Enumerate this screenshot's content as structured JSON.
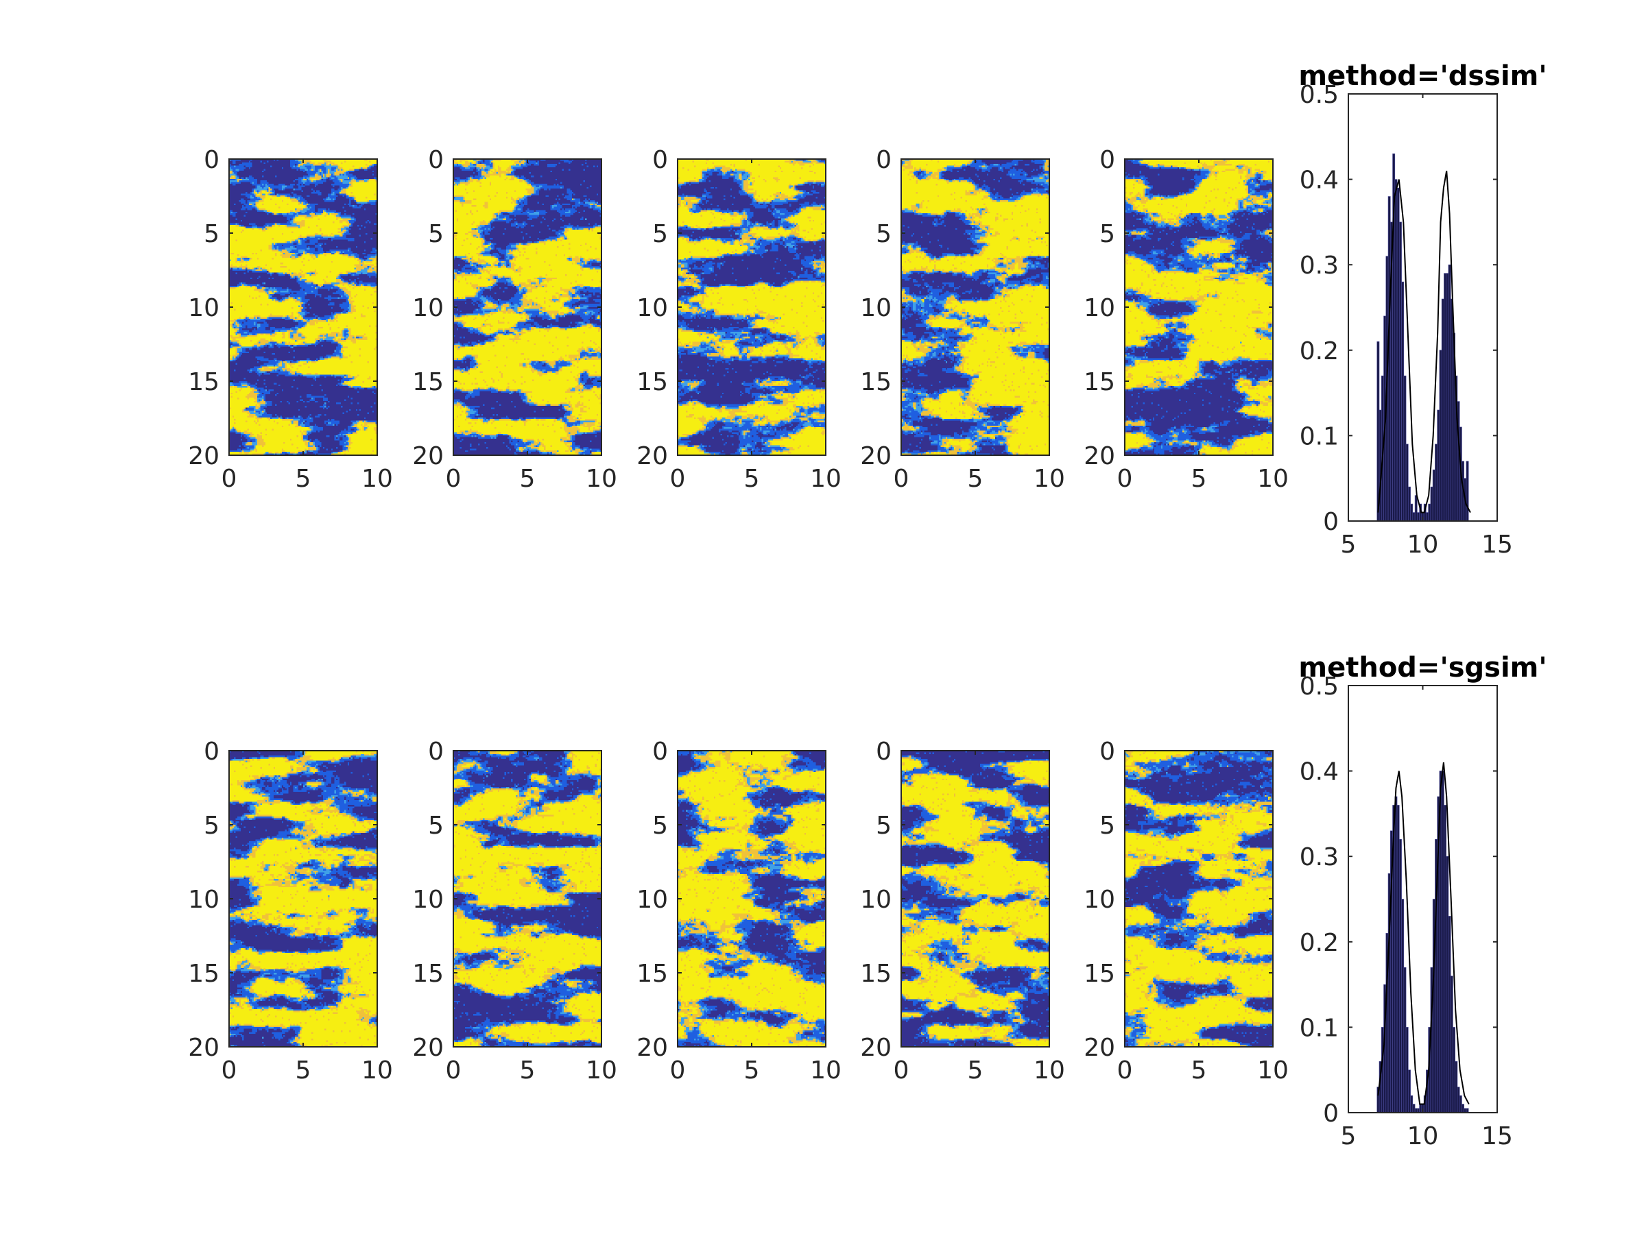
{
  "figure": {
    "background": "#ffffff"
  },
  "colormap": [
    "#35318f",
    "#1f5fe0",
    "#3fa0e8",
    "#f0c23a",
    "#f6ee12"
  ],
  "chart_data": [
    {
      "type": "heatmap",
      "row": 0,
      "col": 0,
      "xlim": [
        0,
        10
      ],
      "ylim": [
        0,
        20
      ],
      "xticks": [
        "0",
        "5",
        "10"
      ],
      "yticks": [
        "0",
        "5",
        "10",
        "15",
        "20"
      ]
    },
    {
      "type": "heatmap",
      "row": 0,
      "col": 1,
      "xlim": [
        0,
        10
      ],
      "ylim": [
        0,
        20
      ],
      "xticks": [
        "0",
        "5",
        "10"
      ],
      "yticks": [
        "0",
        "5",
        "10",
        "15",
        "20"
      ]
    },
    {
      "type": "heatmap",
      "row": 0,
      "col": 2,
      "xlim": [
        0,
        10
      ],
      "ylim": [
        0,
        20
      ],
      "xticks": [
        "0",
        "5",
        "10"
      ],
      "yticks": [
        "0",
        "5",
        "10",
        "15",
        "20"
      ]
    },
    {
      "type": "heatmap",
      "row": 0,
      "col": 3,
      "xlim": [
        0,
        10
      ],
      "ylim": [
        0,
        20
      ],
      "xticks": [
        "0",
        "5",
        "10"
      ],
      "yticks": [
        "0",
        "5",
        "10",
        "15",
        "20"
      ]
    },
    {
      "type": "heatmap",
      "row": 0,
      "col": 4,
      "xlim": [
        0,
        10
      ],
      "ylim": [
        0,
        20
      ],
      "xticks": [
        "0",
        "5",
        "10"
      ],
      "yticks": [
        "0",
        "5",
        "10",
        "15",
        "20"
      ]
    },
    {
      "type": "bar",
      "row": 0,
      "title": "method='dssim'",
      "xlim": [
        5,
        15
      ],
      "ylim": [
        0,
        0.5
      ],
      "xticks": [
        "5",
        "10",
        "15"
      ],
      "yticks": [
        "0",
        "0.1",
        "0.2",
        "0.3",
        "0.4",
        "0.5"
      ],
      "bar_color": "#1a1a4a",
      "bins": [
        7.0,
        7.15,
        7.3,
        7.45,
        7.6,
        7.75,
        7.9,
        8.05,
        8.2,
        8.35,
        8.5,
        8.65,
        8.8,
        8.95,
        9.1,
        9.25,
        9.4,
        9.55,
        9.7,
        9.85,
        10.0,
        10.15,
        10.3,
        10.45,
        10.6,
        10.75,
        10.9,
        11.05,
        11.2,
        11.35,
        11.5,
        11.65,
        11.8,
        11.95,
        12.1,
        12.25,
        12.4,
        12.55,
        12.7,
        12.85,
        13.0
      ],
      "values": [
        0.21,
        0.13,
        0.17,
        0.24,
        0.31,
        0.38,
        0.35,
        0.43,
        0.4,
        0.39,
        0.35,
        0.28,
        0.17,
        0.09,
        0.04,
        0.02,
        0.01,
        0.03,
        0.01,
        0.02,
        0.01,
        0.02,
        0.01,
        0.02,
        0.04,
        0.06,
        0.09,
        0.13,
        0.2,
        0.26,
        0.29,
        0.29,
        0.3,
        0.26,
        0.22,
        0.17,
        0.14,
        0.11,
        0.07,
        0.05,
        0.07
      ],
      "reference_curve": {
        "x": [
          7.0,
          7.5,
          7.8,
          8.1,
          8.4,
          8.7,
          9.0,
          9.3,
          9.6,
          9.9,
          10.1,
          10.4,
          10.7,
          11.0,
          11.2,
          11.4,
          11.6,
          11.8,
          12.0,
          12.3,
          12.6,
          12.9,
          13.2
        ],
        "y": [
          0.01,
          0.12,
          0.26,
          0.38,
          0.4,
          0.35,
          0.22,
          0.09,
          0.03,
          0.01,
          0.01,
          0.03,
          0.1,
          0.22,
          0.35,
          0.39,
          0.41,
          0.36,
          0.26,
          0.12,
          0.05,
          0.02,
          0.01
        ]
      }
    },
    {
      "type": "heatmap",
      "row": 1,
      "col": 0,
      "xlim": [
        0,
        10
      ],
      "ylim": [
        0,
        20
      ],
      "xticks": [
        "0",
        "5",
        "10"
      ],
      "yticks": [
        "0",
        "5",
        "10",
        "15",
        "20"
      ]
    },
    {
      "type": "heatmap",
      "row": 1,
      "col": 1,
      "xlim": [
        0,
        10
      ],
      "ylim": [
        0,
        20
      ],
      "xticks": [
        "0",
        "5",
        "10"
      ],
      "yticks": [
        "0",
        "5",
        "10",
        "15",
        "20"
      ]
    },
    {
      "type": "heatmap",
      "row": 1,
      "col": 2,
      "xlim": [
        0,
        10
      ],
      "ylim": [
        0,
        20
      ],
      "xticks": [
        "0",
        "5",
        "10"
      ],
      "yticks": [
        "0",
        "5",
        "10",
        "15",
        "20"
      ]
    },
    {
      "type": "heatmap",
      "row": 1,
      "col": 3,
      "xlim": [
        0,
        10
      ],
      "ylim": [
        0,
        20
      ],
      "xticks": [
        "0",
        "5",
        "10"
      ],
      "yticks": [
        "0",
        "5",
        "10",
        "15",
        "20"
      ]
    },
    {
      "type": "heatmap",
      "row": 1,
      "col": 4,
      "xlim": [
        0,
        10
      ],
      "ylim": [
        0,
        20
      ],
      "xticks": [
        "0",
        "5",
        "10"
      ],
      "yticks": [
        "0",
        "5",
        "10",
        "15",
        "20"
      ]
    },
    {
      "type": "bar",
      "row": 1,
      "title": "method='sgsim'",
      "xlim": [
        5,
        15
      ],
      "ylim": [
        0,
        0.5
      ],
      "xticks": [
        "5",
        "10",
        "15"
      ],
      "yticks": [
        "0",
        "0.1",
        "0.2",
        "0.3",
        "0.4",
        "0.5"
      ],
      "bar_color": "#1a1a4a",
      "bins": [
        7.0,
        7.15,
        7.3,
        7.45,
        7.6,
        7.75,
        7.9,
        8.05,
        8.2,
        8.35,
        8.5,
        8.65,
        8.8,
        8.95,
        9.1,
        9.25,
        9.4,
        9.55,
        9.7,
        9.85,
        10.0,
        10.15,
        10.3,
        10.45,
        10.6,
        10.75,
        10.9,
        11.05,
        11.2,
        11.35,
        11.5,
        11.65,
        11.8,
        11.95,
        12.1,
        12.25,
        12.4,
        12.55,
        12.7,
        12.85,
        13.0
      ],
      "values": [
        0.03,
        0.06,
        0.1,
        0.15,
        0.21,
        0.28,
        0.33,
        0.36,
        0.37,
        0.36,
        0.32,
        0.25,
        0.17,
        0.1,
        0.05,
        0.02,
        0.01,
        0.005,
        0.005,
        0.01,
        0.01,
        0.02,
        0.05,
        0.1,
        0.17,
        0.25,
        0.32,
        0.37,
        0.4,
        0.4,
        0.36,
        0.3,
        0.23,
        0.16,
        0.1,
        0.06,
        0.03,
        0.02,
        0.01,
        0.005,
        0.005
      ],
      "reference_curve": {
        "x": [
          7.0,
          7.4,
          7.7,
          8.0,
          8.2,
          8.4,
          8.6,
          8.9,
          9.2,
          9.5,
          9.8,
          10.1,
          10.4,
          10.7,
          11.0,
          11.2,
          11.4,
          11.6,
          11.9,
          12.2,
          12.5,
          12.8,
          13.1
        ],
        "y": [
          0.02,
          0.08,
          0.19,
          0.31,
          0.38,
          0.4,
          0.37,
          0.27,
          0.14,
          0.05,
          0.01,
          0.01,
          0.05,
          0.15,
          0.29,
          0.38,
          0.41,
          0.37,
          0.25,
          0.12,
          0.05,
          0.02,
          0.01
        ]
      }
    }
  ]
}
